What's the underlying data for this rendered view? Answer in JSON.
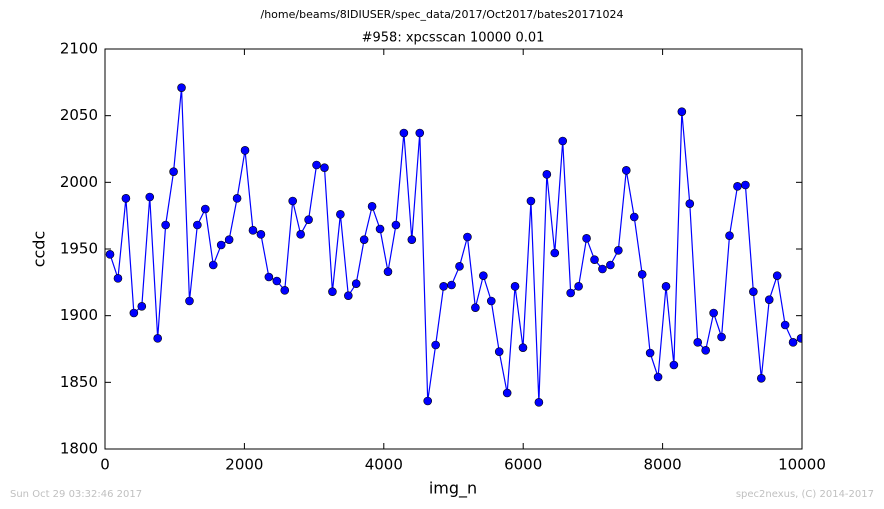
{
  "chart_data": {
    "type": "line",
    "suptitle": "/home/beams/8IDIUSER/spec_data/2017/Oct2017/bates20171024",
    "title": "#958: xpcsscan 10000 0.01",
    "xlabel": "img_n",
    "ylabel": "ccdc",
    "x": [
      72,
      186,
      300,
      414,
      528,
      642,
      756,
      870,
      984,
      1098,
      1212,
      1325,
      1439,
      1553,
      1667,
      1781,
      1895,
      2009,
      2123,
      2237,
      2351,
      2465,
      2579,
      2693,
      2807,
      2921,
      3035,
      3149,
      3263,
      3377,
      3491,
      3604,
      3718,
      3832,
      3946,
      4060,
      4174,
      4288,
      4402,
      4516,
      4630,
      4744,
      4858,
      4972,
      5086,
      5200,
      5314,
      5428,
      5542,
      5656,
      5770,
      5883,
      5997,
      6111,
      6225,
      6339,
      6453,
      6567,
      6681,
      6795,
      6909,
      7023,
      7137,
      7251,
      7365,
      7479,
      7593,
      7707,
      7821,
      7935,
      8049,
      8162,
      8276,
      8390,
      8504,
      8618,
      8732,
      8846,
      8960,
      9074,
      9188,
      9302,
      9416,
      9530,
      9644,
      9758,
      9872,
      9986
    ],
    "series": [
      {
        "color": "#0000ff",
        "values": [
          1946,
          1928,
          1988,
          1902,
          1907,
          1989,
          1883,
          1968,
          2008,
          2071,
          1911,
          1968,
          1980,
          1938,
          1953,
          1957,
          1988,
          2024,
          1964,
          1961,
          1929,
          1926,
          1919,
          1986,
          1961,
          1972,
          2013,
          2011,
          1918,
          1976,
          1915,
          1924,
          1957,
          1982,
          1965,
          1933,
          1968,
          2037,
          1957,
          2037,
          1836,
          1878,
          1922,
          1923,
          1937,
          1959,
          1906,
          1930,
          1911,
          1873,
          1842,
          1922,
          1876,
          1986,
          1835,
          2006,
          1947,
          2031,
          1917,
          1922,
          1958,
          1942,
          1935,
          1938,
          1949,
          2009,
          1974,
          1931,
          1872,
          1854,
          1922,
          1863,
          2053,
          1984,
          1880,
          1874,
          1902,
          1884,
          1960,
          1997,
          1998,
          1918,
          1853,
          1912,
          1930,
          1893,
          1880,
          1883
        ]
      }
    ],
    "xlim": [
      0,
      10000
    ],
    "ylim": [
      1800,
      2100
    ],
    "xticks": [
      0,
      2000,
      4000,
      6000,
      8000,
      10000
    ],
    "yticks": [
      1800,
      1850,
      1900,
      1950,
      2000,
      2050,
      2100
    ]
  },
  "footer": {
    "timestamp": "Sun Oct 29 03:32:46 2017",
    "credit": "spec2nexus, (C) 2014-2017"
  }
}
